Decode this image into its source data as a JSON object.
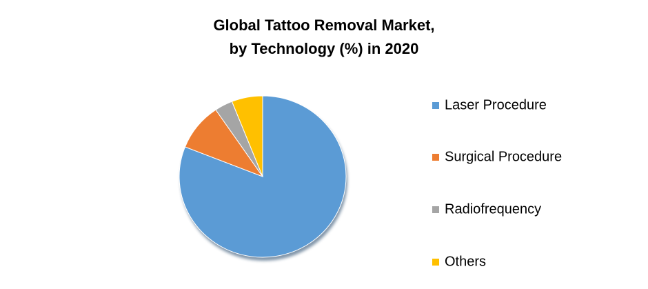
{
  "chart_data": {
    "type": "pie",
    "title": [
      "Global Tattoo Removal Market,",
      "by Technology (%) in 2020"
    ],
    "categories": [
      "Laser Procedure",
      "Surgical Procedure",
      "Radiofrequency",
      "Others"
    ],
    "values": [
      81,
      9.5,
      3.5,
      6
    ],
    "colors": [
      "#5b9bd5",
      "#ed7d31",
      "#a5a5a5",
      "#ffc000"
    ],
    "legend": "right"
  }
}
